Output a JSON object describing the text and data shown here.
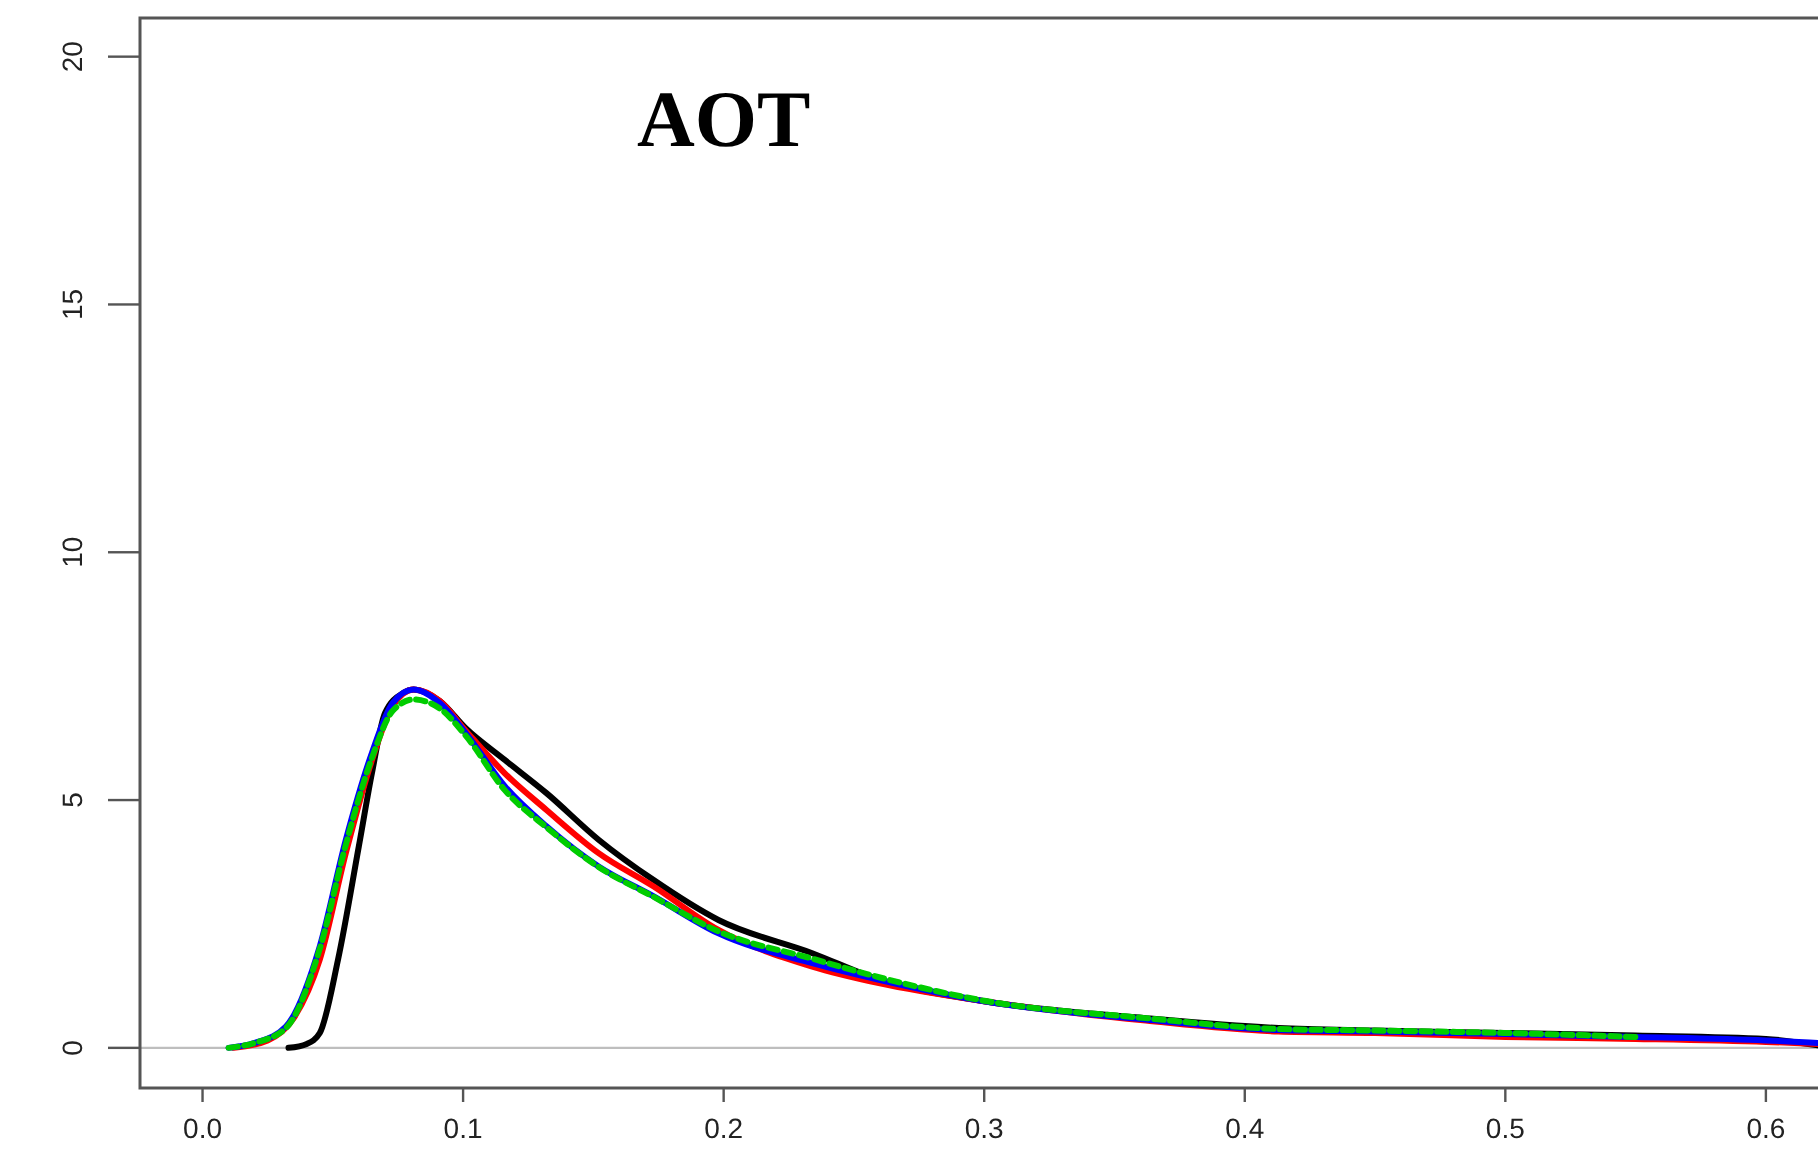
{
  "chart_data": {
    "type": "line",
    "title": "AOT",
    "xlim": [
      -0.024,
      0.62
    ],
    "ylim": [
      -0.81,
      20.78
    ],
    "xticks": [
      {
        "value": 0,
        "label": "0.0"
      },
      0.1,
      0.2,
      0.3,
      0.4,
      0.5,
      0.6
    ],
    "yticks": [
      0,
      5,
      10,
      15,
      20
    ],
    "grid": false,
    "marker": "none",
    "ref_lines": [
      {
        "axis": "y",
        "value": 0,
        "label": null,
        "color": "#bebebe"
      }
    ],
    "series": [
      {
        "color": "#000000",
        "line_style": "solid",
        "x": [
          0.033,
          0.04,
          0.045,
          0.052,
          0.06,
          0.065,
          0.07,
          0.077,
          0.081,
          0.091,
          0.101,
          0.116,
          0.132,
          0.152,
          0.173,
          0.198,
          0.234,
          0.26,
          0.3,
          0.362,
          0.413,
          0.45,
          0.5,
          0.55,
          0.6,
          0.62
        ],
        "values": [
          0,
          0.08,
          0.3,
          1.78,
          4.07,
          5.54,
          6.75,
          7.16,
          7.23,
          7.0,
          6.45,
          5.81,
          5.14,
          4.2,
          3.39,
          2.58,
          1.91,
          1.37,
          0.94,
          0.6,
          0.4,
          0.35,
          0.3,
          0.25,
          0.18,
          0.05
        ]
      },
      {
        "color": "#ff0000",
        "line_style": "solid",
        "x": [
          0.012,
          0.025,
          0.035,
          0.045,
          0.055,
          0.065,
          0.073,
          0.081,
          0.091,
          0.101,
          0.116,
          0.132,
          0.152,
          0.173,
          0.198,
          0.234,
          0.26,
          0.3,
          0.362,
          0.413,
          0.45,
          0.5,
          0.55,
          0.6,
          0.62
        ],
        "values": [
          0,
          0.15,
          0.6,
          1.78,
          3.93,
          5.8,
          6.9,
          7.23,
          7.0,
          6.4,
          5.54,
          4.8,
          3.93,
          3.26,
          2.38,
          1.64,
          1.3,
          0.94,
          0.55,
          0.33,
          0.3,
          0.22,
          0.18,
          0.12,
          0.08
        ]
      },
      {
        "color": "#0000ff",
        "line_style": "solid",
        "x": [
          0.01,
          0.02,
          0.032,
          0.045,
          0.055,
          0.065,
          0.073,
          0.081,
          0.091,
          0.101,
          0.116,
          0.132,
          0.152,
          0.173,
          0.198,
          0.234,
          0.26,
          0.3,
          0.362,
          0.413,
          0.45,
          0.5,
          0.55,
          0.6,
          0.62
        ],
        "values": [
          0,
          0.1,
          0.43,
          2.05,
          4.2,
          5.95,
          6.96,
          7.23,
          6.96,
          6.35,
          5.28,
          4.47,
          3.66,
          3.06,
          2.31,
          1.71,
          1.37,
          0.94,
          0.57,
          0.36,
          0.33,
          0.28,
          0.22,
          0.15,
          0.1
        ]
      },
      {
        "color": "#00cd00",
        "line_style": "dashed",
        "x": [
          0.01,
          0.02,
          0.032,
          0.045,
          0.055,
          0.065,
          0.073,
          0.081,
          0.091,
          0.101,
          0.116,
          0.132,
          0.152,
          0.173,
          0.198,
          0.234,
          0.26,
          0.3,
          0.362,
          0.413,
          0.45,
          0.5,
          0.55
        ],
        "values": [
          0,
          0.1,
          0.4,
          2.0,
          4.1,
          5.85,
          6.8,
          7.03,
          6.85,
          6.3,
          5.2,
          4.45,
          3.65,
          3.05,
          2.35,
          1.8,
          1.42,
          0.95,
          0.6,
          0.38,
          0.35,
          0.3,
          0.22
        ]
      }
    ]
  }
}
